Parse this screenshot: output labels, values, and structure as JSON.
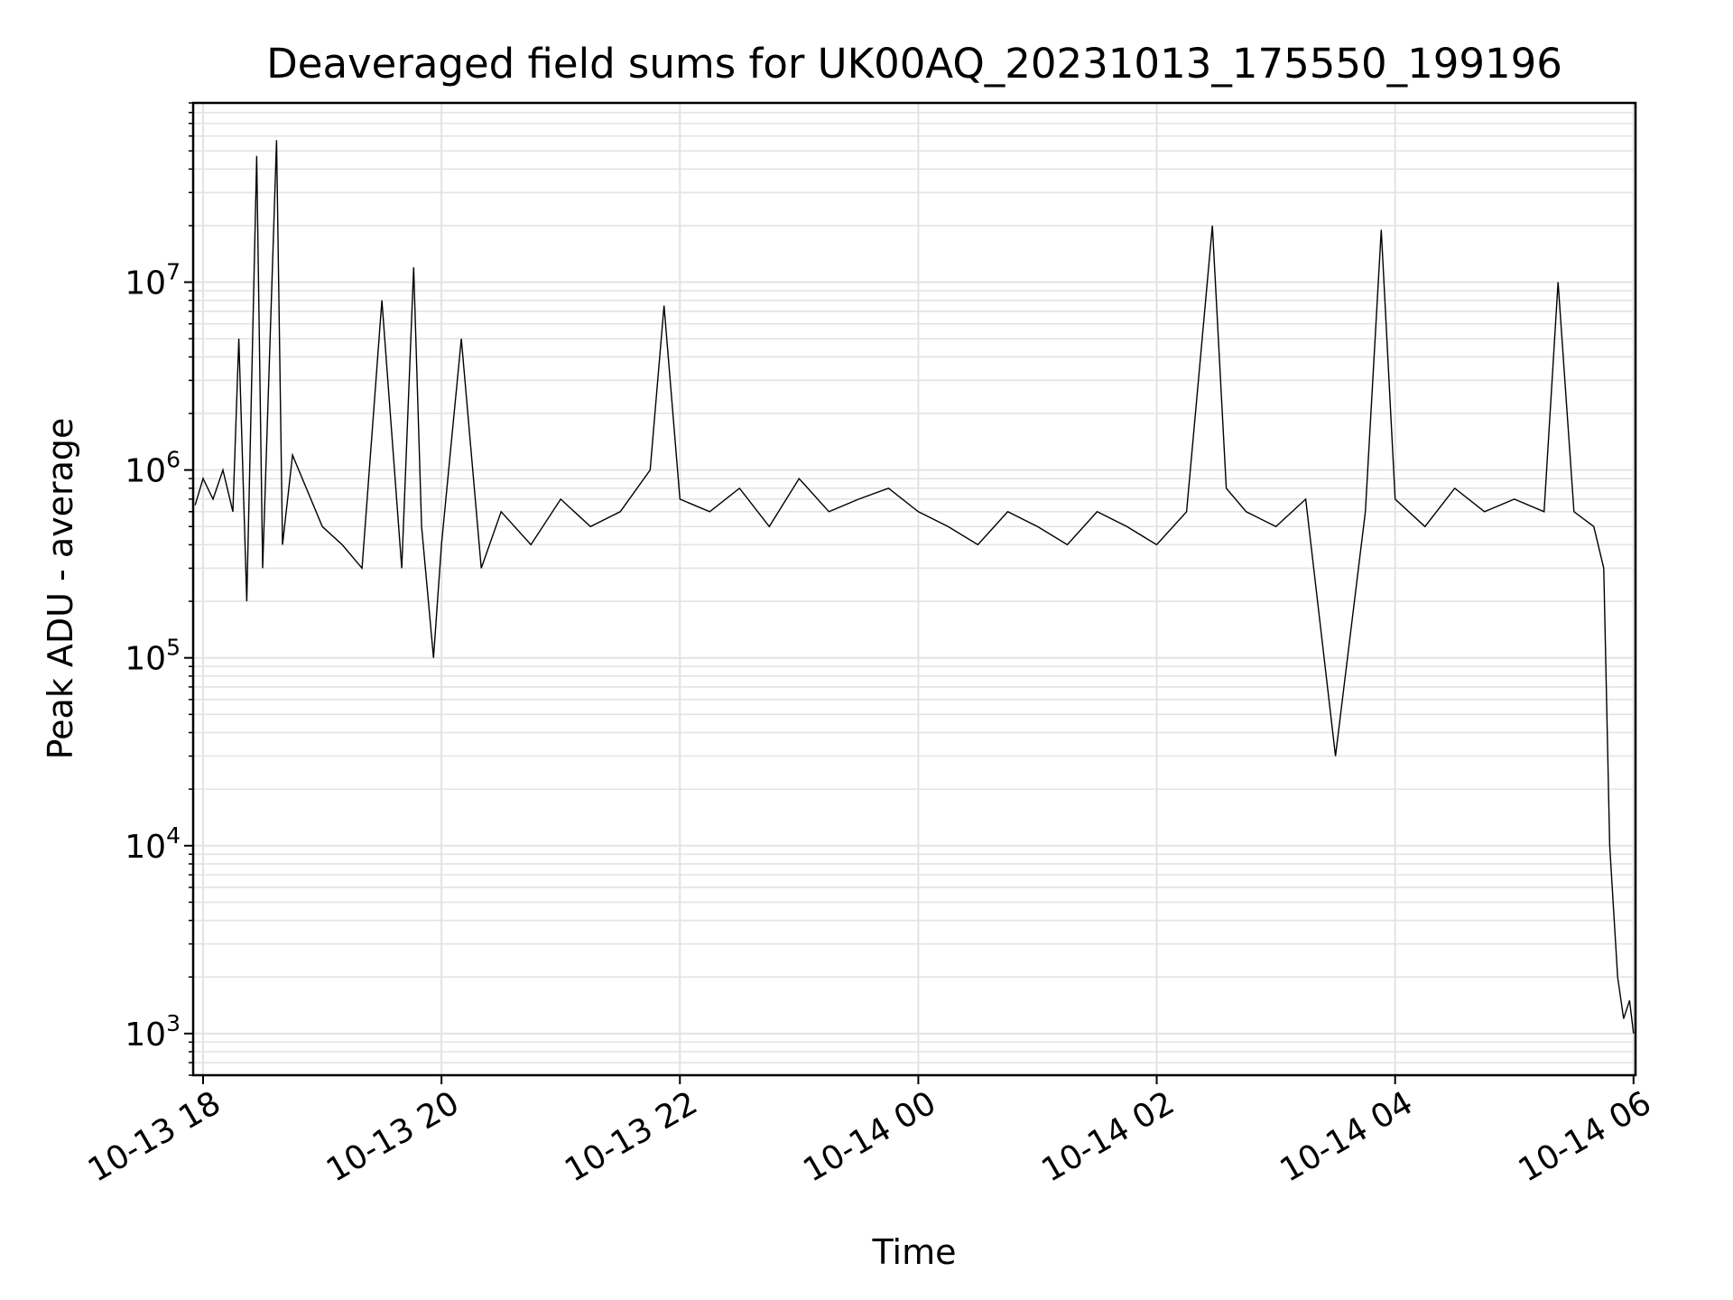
{
  "chart_data": {
    "type": "line",
    "title": "Deaveraged field sums for UK00AQ_20231013_175550_199196",
    "xlabel": "Time",
    "ylabel": "Peak ADU - average",
    "y_scale": "log",
    "y_tick_labels": [
      {
        "base": "10",
        "exp": "3",
        "value": 1000
      },
      {
        "base": "10",
        "exp": "4",
        "value": 10000
      },
      {
        "base": "10",
        "exp": "5",
        "value": 100000
      },
      {
        "base": "10",
        "exp": "6",
        "value": 1000000
      },
      {
        "base": "10",
        "exp": "7",
        "value": 10000000
      }
    ],
    "x_tick_labels": [
      "10-13 18",
      "10-13 20",
      "10-13 22",
      "10-14 00",
      "10-14 02",
      "10-14 04",
      "10-14 06"
    ],
    "x_tick_times": [
      "2023-10-13T18:00",
      "2023-10-13T20:00",
      "2023-10-13T22:00",
      "2023-10-14T00:00",
      "2023-10-14T02:00",
      "2023-10-14T04:00",
      "2023-10-14T06:00"
    ],
    "xlim": [
      "2023-10-13T17:55",
      "2023-10-14T06:01"
    ],
    "ylim": [
      600,
      90000000
    ],
    "grid": true,
    "line_color": "#000000",
    "grid_color": "#e3e3e3",
    "series": [
      {
        "points": [
          [
            "2023-10-13T17:56",
            650000
          ],
          [
            "2023-10-13T18:00",
            900000
          ],
          [
            "2023-10-13T18:05",
            700000
          ],
          [
            "2023-10-13T18:10",
            1000000
          ],
          [
            "2023-10-13T18:15",
            600000
          ],
          [
            "2023-10-13T18:18",
            5000000
          ],
          [
            "2023-10-13T18:22",
            200000
          ],
          [
            "2023-10-13T18:27",
            47000000
          ],
          [
            "2023-10-13T18:30",
            300000
          ],
          [
            "2023-10-13T18:37",
            57000000
          ],
          [
            "2023-10-13T18:40",
            400000
          ],
          [
            "2023-10-13T18:45",
            1200000
          ],
          [
            "2023-10-13T19:00",
            500000
          ],
          [
            "2023-10-13T19:10",
            400000
          ],
          [
            "2023-10-13T19:20",
            300000
          ],
          [
            "2023-10-13T19:30",
            8000000
          ],
          [
            "2023-10-13T19:40",
            300000
          ],
          [
            "2023-10-13T19:46",
            12000000
          ],
          [
            "2023-10-13T19:50",
            500000
          ],
          [
            "2023-10-13T19:56",
            100000
          ],
          [
            "2023-10-13T20:00",
            400000
          ],
          [
            "2023-10-13T20:10",
            5000000
          ],
          [
            "2023-10-13T20:20",
            300000
          ],
          [
            "2023-10-13T20:30",
            600000
          ],
          [
            "2023-10-13T20:45",
            400000
          ],
          [
            "2023-10-13T21:00",
            700000
          ],
          [
            "2023-10-13T21:15",
            500000
          ],
          [
            "2023-10-13T21:30",
            600000
          ],
          [
            "2023-10-13T21:45",
            1000000
          ],
          [
            "2023-10-13T21:52",
            7500000
          ],
          [
            "2023-10-13T22:00",
            700000
          ],
          [
            "2023-10-13T22:15",
            600000
          ],
          [
            "2023-10-13T22:30",
            800000
          ],
          [
            "2023-10-13T22:45",
            500000
          ],
          [
            "2023-10-13T23:00",
            900000
          ],
          [
            "2023-10-13T23:15",
            600000
          ],
          [
            "2023-10-13T23:30",
            700000
          ],
          [
            "2023-10-13T23:45",
            800000
          ],
          [
            "2023-10-14T00:00",
            600000
          ],
          [
            "2023-10-14T00:15",
            500000
          ],
          [
            "2023-10-14T00:30",
            400000
          ],
          [
            "2023-10-14T00:45",
            600000
          ],
          [
            "2023-10-14T01:00",
            500000
          ],
          [
            "2023-10-14T01:15",
            400000
          ],
          [
            "2023-10-14T01:30",
            600000
          ],
          [
            "2023-10-14T01:45",
            500000
          ],
          [
            "2023-10-14T02:00",
            400000
          ],
          [
            "2023-10-14T02:15",
            600000
          ],
          [
            "2023-10-14T02:28",
            20000000
          ],
          [
            "2023-10-14T02:35",
            800000
          ],
          [
            "2023-10-14T02:45",
            600000
          ],
          [
            "2023-10-14T03:00",
            500000
          ],
          [
            "2023-10-14T03:15",
            700000
          ],
          [
            "2023-10-14T03:30",
            30000
          ],
          [
            "2023-10-14T03:45",
            600000
          ],
          [
            "2023-10-14T03:53",
            19000000
          ],
          [
            "2023-10-14T04:00",
            700000
          ],
          [
            "2023-10-14T04:15",
            500000
          ],
          [
            "2023-10-14T04:30",
            800000
          ],
          [
            "2023-10-14T04:45",
            600000
          ],
          [
            "2023-10-14T05:00",
            700000
          ],
          [
            "2023-10-14T05:15",
            600000
          ],
          [
            "2023-10-14T05:22",
            10000000
          ],
          [
            "2023-10-14T05:30",
            600000
          ],
          [
            "2023-10-14T05:40",
            500000
          ],
          [
            "2023-10-14T05:45",
            300000
          ],
          [
            "2023-10-14T05:48",
            10000
          ],
          [
            "2023-10-14T05:52",
            2000
          ],
          [
            "2023-10-14T05:55",
            1200
          ],
          [
            "2023-10-14T05:58",
            1500
          ],
          [
            "2023-10-14T06:00",
            1000
          ]
        ]
      }
    ]
  }
}
